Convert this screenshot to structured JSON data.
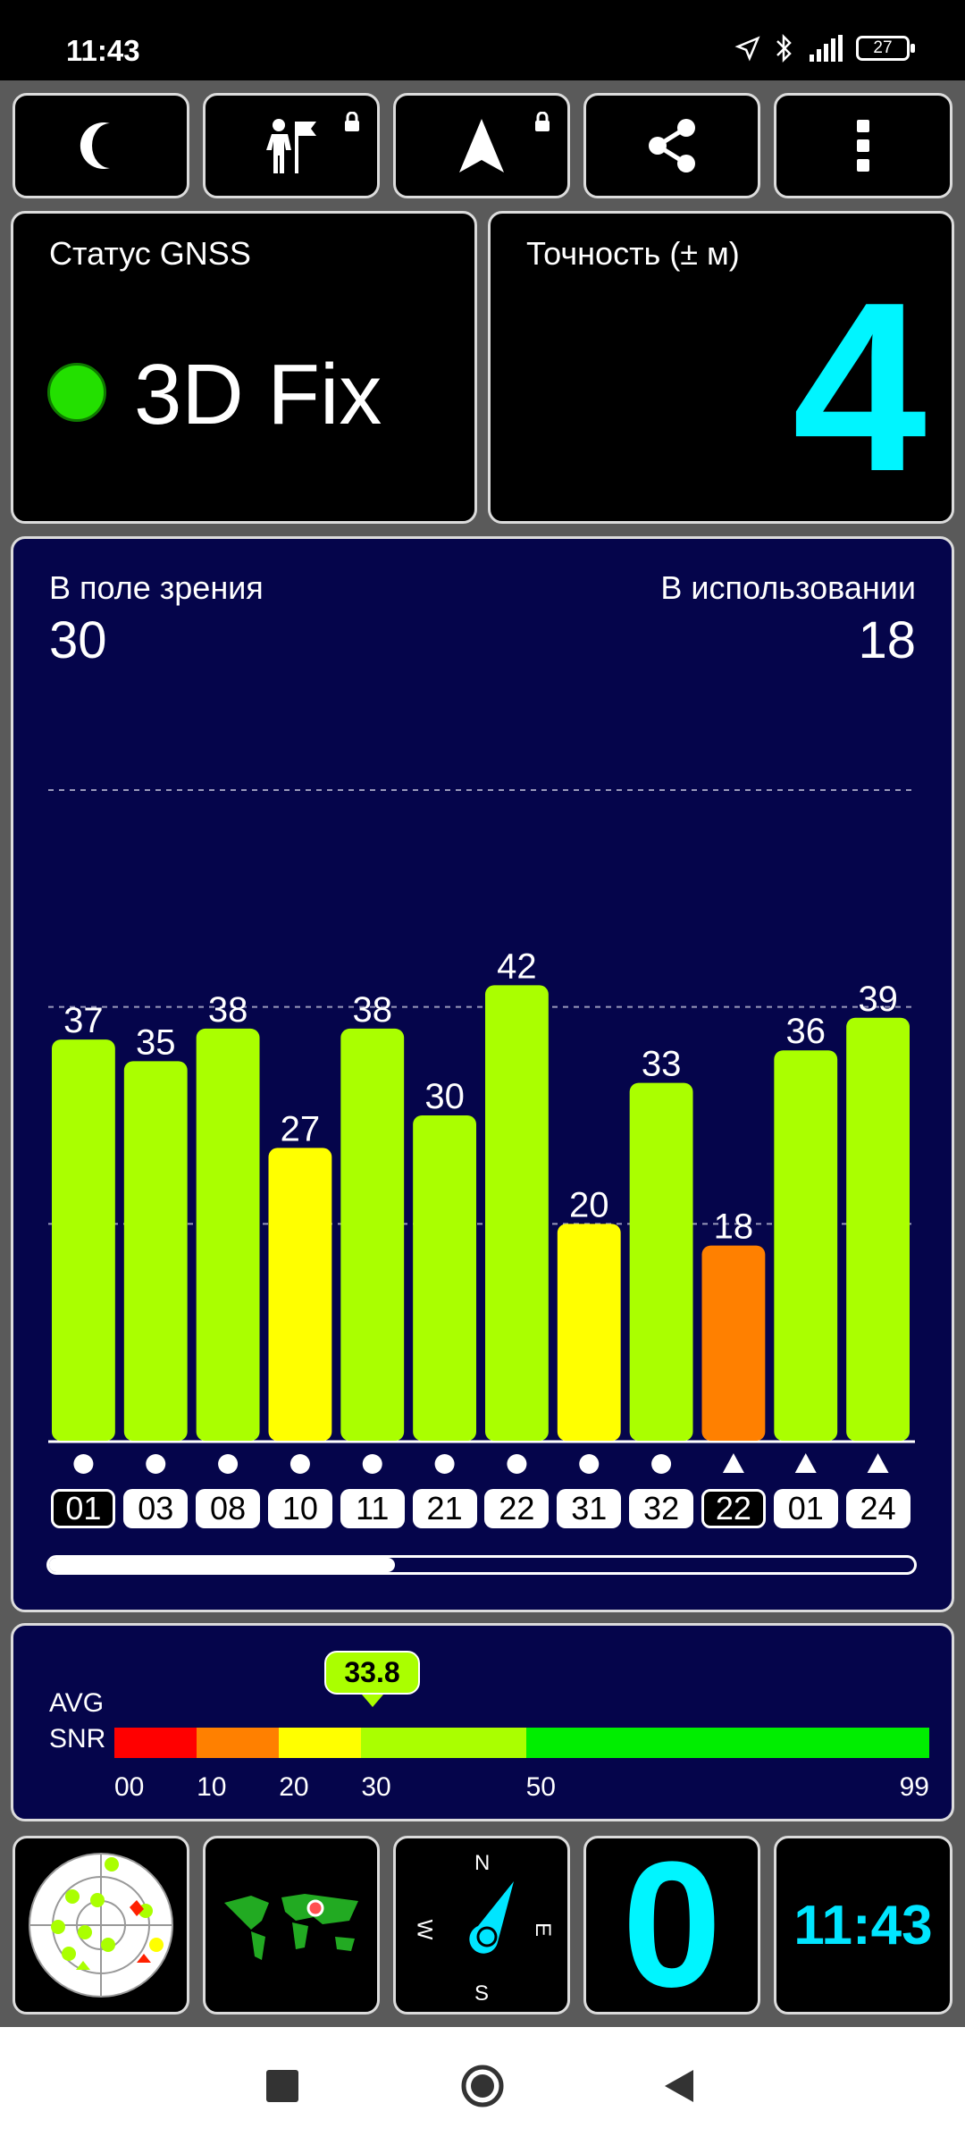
{
  "status_bar": {
    "time": "11:43",
    "battery": "27"
  },
  "toolbar": {
    "buttons": [
      {
        "name": "night-mode",
        "icon": "moon-icon"
      },
      {
        "name": "navigate-to-point",
        "icon": "person-flag-icon",
        "locked": true
      },
      {
        "name": "navigation",
        "icon": "navigation-arrow-icon",
        "locked": true
      },
      {
        "name": "share",
        "icon": "share-icon"
      },
      {
        "name": "more-options",
        "icon": "more-vert-icon"
      }
    ]
  },
  "gnss_status": {
    "title": "Статус GNSS",
    "value": "3D Fix",
    "color": "#23e000"
  },
  "accuracy": {
    "title": "Точность (± м)",
    "value": "4",
    "color": "#00f5ff"
  },
  "satellites": {
    "in_view_label": "В поле зрения",
    "in_view_count": "30",
    "in_use_label": "В использовании",
    "in_use_count": "18",
    "scroll_fraction": 0.4
  },
  "chart_data": {
    "type": "bar",
    "categories": [
      "01",
      "03",
      "08",
      "10",
      "11",
      "21",
      "22",
      "31",
      "32",
      "22",
      "01",
      "24"
    ],
    "values": [
      37,
      35,
      38,
      27,
      38,
      30,
      42,
      20,
      33,
      18,
      36,
      39
    ],
    "colors": [
      "#aaff00",
      "#aaff00",
      "#aaff00",
      "#ffff00",
      "#aaff00",
      "#aaff00",
      "#aaff00",
      "#ffff00",
      "#aaff00",
      "#ff8000",
      "#aaff00",
      "#aaff00"
    ],
    "markers": [
      "circle",
      "circle",
      "circle",
      "circle",
      "circle",
      "circle",
      "circle",
      "circle",
      "circle",
      "triangle",
      "triangle",
      "triangle"
    ],
    "used": [
      false,
      true,
      true,
      true,
      true,
      true,
      true,
      true,
      true,
      false,
      true,
      true
    ],
    "ylim": [
      0,
      60
    ],
    "gridlines": [
      20,
      40,
      60
    ]
  },
  "snr": {
    "label_line1": "AVG",
    "label_line2": "SNR",
    "avg_value": "33.8",
    "avg": 33.8,
    "segments": [
      {
        "from": 0,
        "to": 10,
        "color": "#ff0000"
      },
      {
        "from": 10,
        "to": 20,
        "color": "#ff8000"
      },
      {
        "from": 20,
        "to": 30,
        "color": "#ffff00"
      },
      {
        "from": 30,
        "to": 50,
        "color": "#aaff00"
      },
      {
        "from": 50,
        "to": 99,
        "color": "#00ee00"
      }
    ],
    "ticks": [
      "00",
      "10",
      "20",
      "30",
      "50",
      "99"
    ]
  },
  "bottom_tiles": {
    "sky_view": {
      "icon": "sky-view-icon"
    },
    "world_map": {
      "icon": "world-map-icon"
    },
    "compass": {
      "n": "N",
      "e": "E",
      "s": "S",
      "w": "W"
    },
    "speed": {
      "value": "0",
      "color": "#00f5ff"
    },
    "clock": {
      "value": "11:43",
      "color": "#00e5ff"
    }
  },
  "nav_bar": {
    "buttons": [
      "recents-button",
      "home-button",
      "back-button"
    ]
  }
}
